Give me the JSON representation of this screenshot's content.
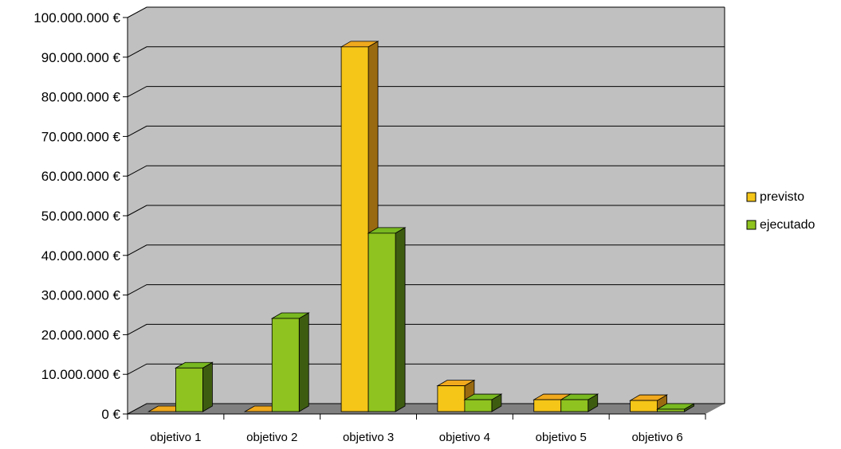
{
  "chart_data": {
    "type": "bar",
    "title": "",
    "xlabel": "",
    "ylabel": "",
    "categories": [
      "objetivo 1",
      "objetivo 2",
      "objetivo 3",
      "objetivo 4",
      "objetivo 5",
      "objetivo 6"
    ],
    "series": [
      {
        "name": "previsto",
        "values": [
          0,
          0,
          92000000,
          6500000,
          3000000,
          2800000
        ],
        "color": "#f5c518"
      },
      {
        "name": "ejecutado",
        "values": [
          11000000,
          23500000,
          45000000,
          3000000,
          3000000,
          600000
        ],
        "color": "#8fc31f"
      }
    ],
    "ylim": [
      0,
      100000000
    ],
    "y_ticks": [
      0,
      10000000,
      20000000,
      30000000,
      40000000,
      50000000,
      60000000,
      70000000,
      80000000,
      90000000,
      100000000
    ],
    "y_tick_labels": [
      "0 €",
      "10.000.000 €",
      "20.000.000 €",
      "30.000.000 €",
      "40.000.000 €",
      "50.000.000 €",
      "60.000.000 €",
      "70.000.000 €",
      "80.000.000 €",
      "90.000.000 €",
      "100.000.000 €"
    ],
    "grid": true,
    "legend_position": "right",
    "style": "3d-clustered-column"
  },
  "colors": {
    "wall": "#c0c0c0",
    "floor": "#808080",
    "grid": "#000000",
    "previsto_front": "#f5c518",
    "previsto_top": "#f0a81d",
    "previsto_side": "#9a6a10",
    "ejecutado_front": "#8fc31f",
    "ejecutado_top": "#78b820",
    "ejecutado_side": "#3e5c10"
  }
}
